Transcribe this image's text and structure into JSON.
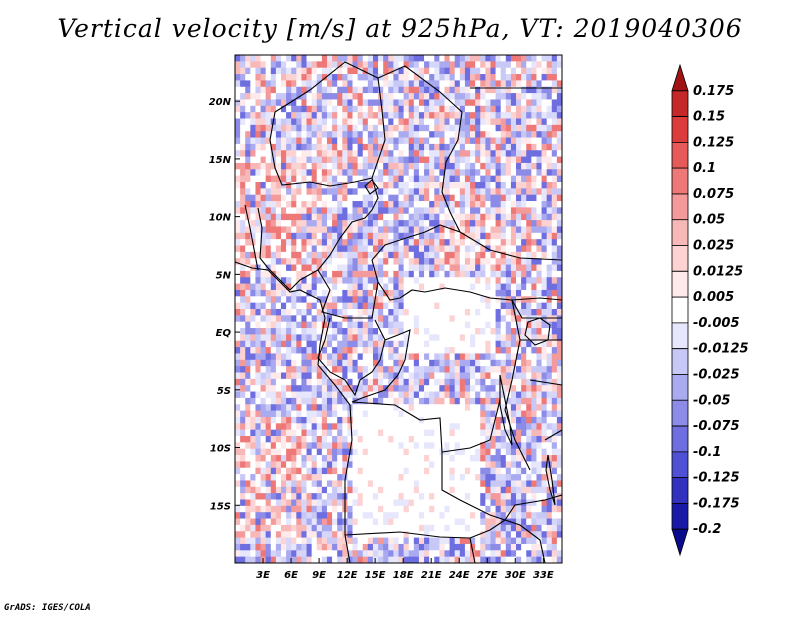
{
  "title": "Vertical velocity [m/s] at 925hPa, VT: 2019040306",
  "credit": "GrADS: IGES/COLA",
  "map": {
    "region": "Central Africa",
    "lon_range": [
      0,
      35
    ],
    "lat_range": [
      -20,
      24
    ],
    "x_ticks": [
      {
        "lon": 3,
        "label": "3E"
      },
      {
        "lon": 6,
        "label": "6E"
      },
      {
        "lon": 9,
        "label": "9E"
      },
      {
        "lon": 12,
        "label": "12E"
      },
      {
        "lon": 15,
        "label": "15E"
      },
      {
        "lon": 18,
        "label": "18E"
      },
      {
        "lon": 21,
        "label": "21E"
      },
      {
        "lon": 24,
        "label": "24E"
      },
      {
        "lon": 27,
        "label": "27E"
      },
      {
        "lon": 30,
        "label": "30E"
      },
      {
        "lon": 33,
        "label": "33E"
      }
    ],
    "y_ticks": [
      {
        "lat": 20,
        "label": "20N"
      },
      {
        "lat": 15,
        "label": "15N"
      },
      {
        "lat": 10,
        "label": "10N"
      },
      {
        "lat": 5,
        "label": "5N"
      },
      {
        "lat": 0,
        "label": "EQ"
      },
      {
        "lat": -5,
        "label": "5S"
      },
      {
        "lat": -10,
        "label": "10S"
      },
      {
        "lat": -15,
        "label": "15S"
      }
    ]
  },
  "colorbar": {
    "labels": [
      "0.175",
      "0.15",
      "0.125",
      "0.1",
      "0.075",
      "0.05",
      "0.025",
      "0.0125",
      "0.005",
      "-0.005",
      "-0.0125",
      "-0.025",
      "-0.05",
      "-0.075",
      "-0.1",
      "-0.125",
      "-0.175",
      "-0.2"
    ],
    "colors": [
      "#a01414",
      "#c42828",
      "#dc3c3c",
      "#e65a5a",
      "#ee7878",
      "#f49a9a",
      "#f8b8b8",
      "#fcd2d2",
      "#feeaea",
      "#ffffff",
      "#e6e6fc",
      "#c8c8f6",
      "#aaaaf0",
      "#8c8ce8",
      "#6e6ee0",
      "#5050d4",
      "#3232be",
      "#1a1aa6",
      "#0a0a8c"
    ]
  },
  "field": {
    "nx": 64,
    "ny": 80,
    "seed": 7,
    "pale_areas": [
      {
        "lon_min": 12.5,
        "lon_max": 26,
        "lat_min": -18,
        "lat_max": -6
      },
      {
        "lon_min": 18,
        "lon_max": 28,
        "lat_min": -2,
        "lat_max": 5
      }
    ],
    "positive_bias_areas": [
      {
        "lon_min": 0,
        "lon_max": 10,
        "lat_min": 5,
        "lat_max": 16
      },
      {
        "lon_min": 22,
        "lon_max": 30,
        "lat_min": 6,
        "lat_max": 10
      },
      {
        "lon_min": 0,
        "lon_max": 7,
        "lat_min": -18,
        "lat_max": -8
      }
    ]
  }
}
